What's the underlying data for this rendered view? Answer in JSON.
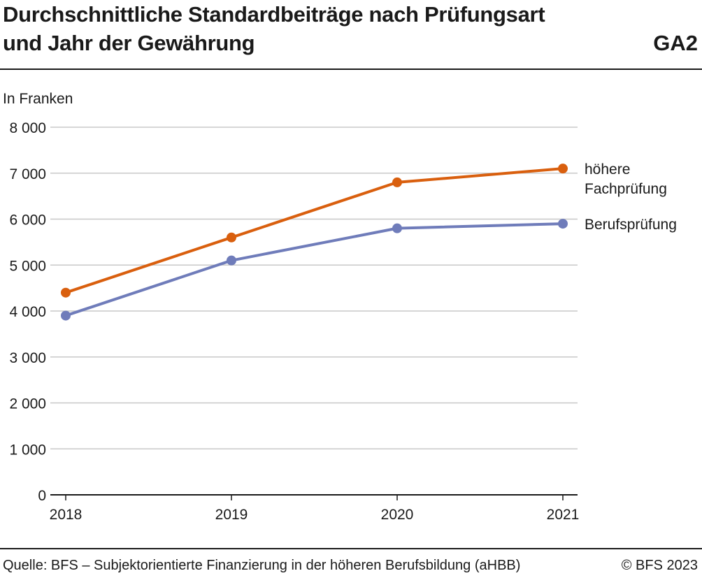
{
  "header": {
    "title_line1": "Durchschnittliche Standardbeiträge nach Prüfungsart",
    "title_line2": "und Jahr der Gewährung",
    "code": "GA2"
  },
  "footer": {
    "source": "Quelle: BFS – Subjektorientierte Finanzierung in der höheren Berufsbildung (aHBB)",
    "copyright": "© BFS 2023"
  },
  "chart_data": {
    "type": "line",
    "title": "Durchschnittliche Standardbeiträge nach Prüfungsart und Jahr der Gewährung",
    "ylabel": "In Franken",
    "xlabel": "",
    "categories": [
      "2018",
      "2019",
      "2020",
      "2021"
    ],
    "ylim": [
      0,
      8000
    ],
    "yticks": [
      0,
      1000,
      2000,
      3000,
      4000,
      5000,
      6000,
      7000,
      8000
    ],
    "ytick_labels": [
      "0",
      "1 000",
      "2 000",
      "3 000",
      "4 000",
      "5 000",
      "6 000",
      "7 000",
      "8 000"
    ],
    "grid": true,
    "legend": "right, labels at line ends",
    "series": [
      {
        "name": "höhere Fachprüfung",
        "label_lines": [
          "höhere",
          "Fachprüfung"
        ],
        "color": "#d95f0e",
        "values": [
          4400,
          5600,
          6800,
          7100
        ]
      },
      {
        "name": "Berufsprüfung",
        "label_lines": [
          "Berufsprüfung"
        ],
        "color": "#6f7cba",
        "values": [
          3900,
          5100,
          5800,
          5900
        ]
      }
    ]
  }
}
